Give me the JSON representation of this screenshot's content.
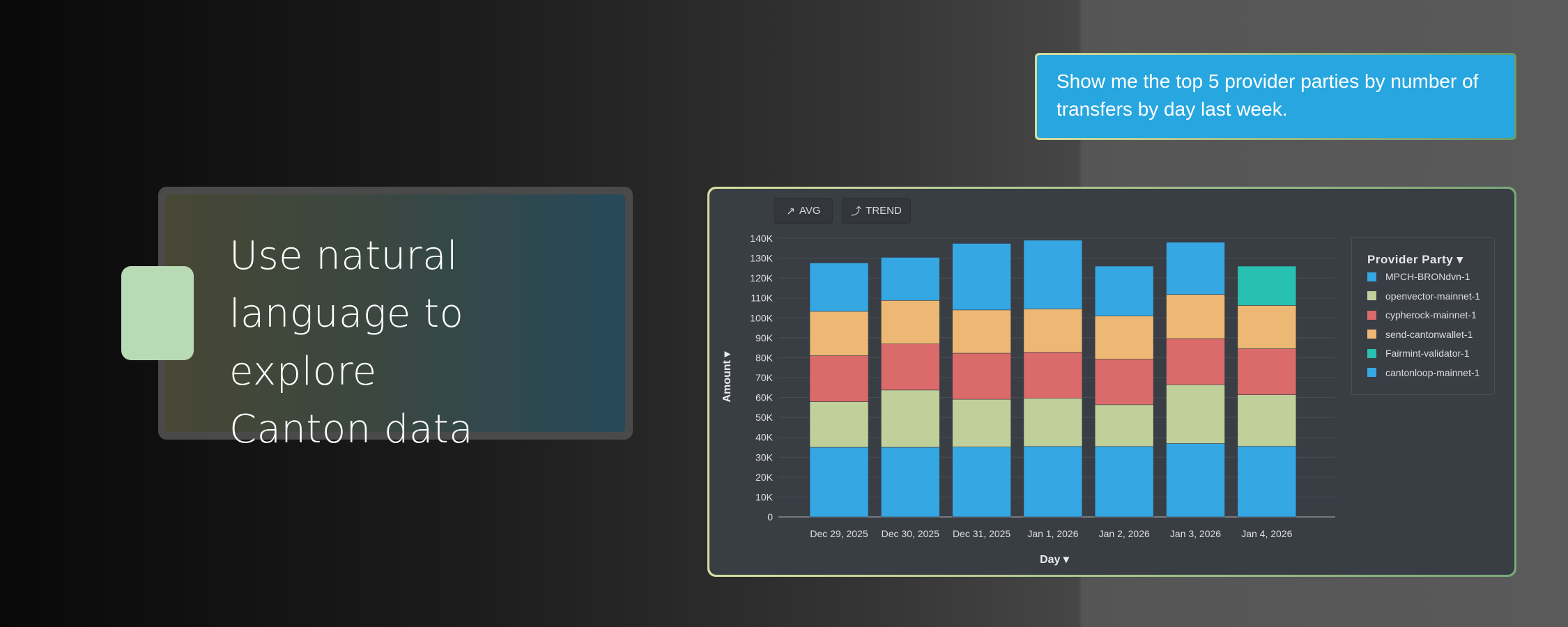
{
  "headline": {
    "lines": [
      "Use natural",
      "language to explore",
      "Canton data"
    ]
  },
  "query": {
    "text": "Show me the top 5 provider parties by number of transfers by day last week."
  },
  "toolbar": {
    "avg_label": "AVG",
    "trend_label": "TREND",
    "avg_icon": "trending-arrow-icon",
    "trend_icon": "trend-curve-icon"
  },
  "colors": {
    "tab": "#b8dbb6",
    "query_bg": "#27a6df",
    "panel_bg": "#393d44"
  },
  "chart_data": {
    "type": "bar",
    "stacked": true,
    "xlabel": "Day ▾",
    "ylabel": "Amount ▾",
    "ylim": [
      0,
      140000
    ],
    "yticks": [
      "0",
      "10K",
      "20K",
      "30K",
      "40K",
      "50K",
      "60K",
      "70K",
      "80K",
      "90K",
      "100K",
      "110K",
      "120K",
      "130K",
      "140K"
    ],
    "grid": true,
    "legend_title": "Provider Party ▾",
    "legend_position": "right",
    "categories": [
      "Dec 29, 2025",
      "Dec 30, 2025",
      "Dec 31, 2025",
      "Jan 1, 2026",
      "Jan 2, 2026",
      "Jan 3, 2026",
      "Jan 4, 2026"
    ],
    "series": [
      {
        "name": "MPCH-BRONdvn-1",
        "color": "#35a7e3",
        "values": [
          35000,
          35000,
          35100,
          35400,
          35400,
          36900,
          35500
        ]
      },
      {
        "name": "openvector-mainnet-1",
        "color": "#bfd09a",
        "values": [
          22900,
          28750,
          24000,
          24200,
          21000,
          29500,
          25900
        ]
      },
      {
        "name": "cypherock-mainnet-1",
        "color": "#da6b6a",
        "values": [
          23100,
          23150,
          23150,
          23150,
          22850,
          23200,
          23100
        ]
      },
      {
        "name": "send-cantonwallet-1",
        "color": "#edb873",
        "values": [
          22300,
          21850,
          21750,
          21750,
          21650,
          22150,
          21750
        ]
      },
      {
        "name": "Fairmint-validator-1",
        "color": "#28c0b0",
        "values": [
          0,
          0,
          0,
          0,
          0,
          0,
          19750
        ]
      },
      {
        "name": "cantonloop-mainnet-1",
        "color": "#35a7e3",
        "values": [
          24300,
          21650,
          33400,
          34500,
          25100,
          26250,
          0
        ]
      }
    ]
  }
}
